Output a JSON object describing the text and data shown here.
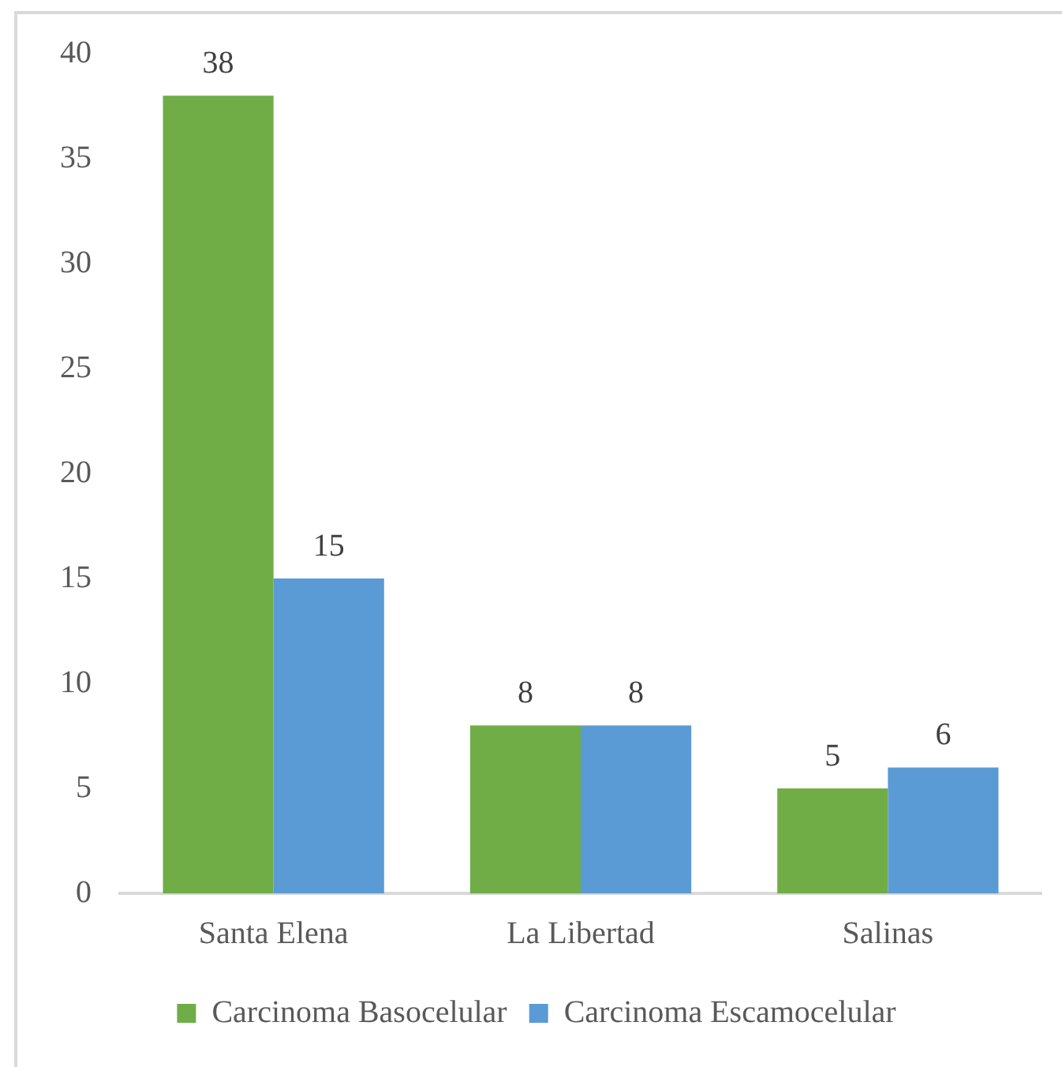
{
  "chart_data": {
    "type": "bar",
    "categories": [
      "Santa Elena",
      "La Libertad",
      "Salinas"
    ],
    "series": [
      {
        "name": "Carcinoma Basocelular",
        "color": "#70ad47",
        "values": [
          38,
          8,
          5
        ]
      },
      {
        "name": "Carcinoma Escamocelular",
        "color": "#5b9bd5",
        "values": [
          15,
          8,
          6
        ]
      }
    ],
    "ylim": [
      0,
      40
    ],
    "yticks": [
      0,
      5,
      10,
      15,
      20,
      25,
      30,
      35,
      40
    ],
    "grid": false,
    "legend": "bottom",
    "data_labels": true
  }
}
